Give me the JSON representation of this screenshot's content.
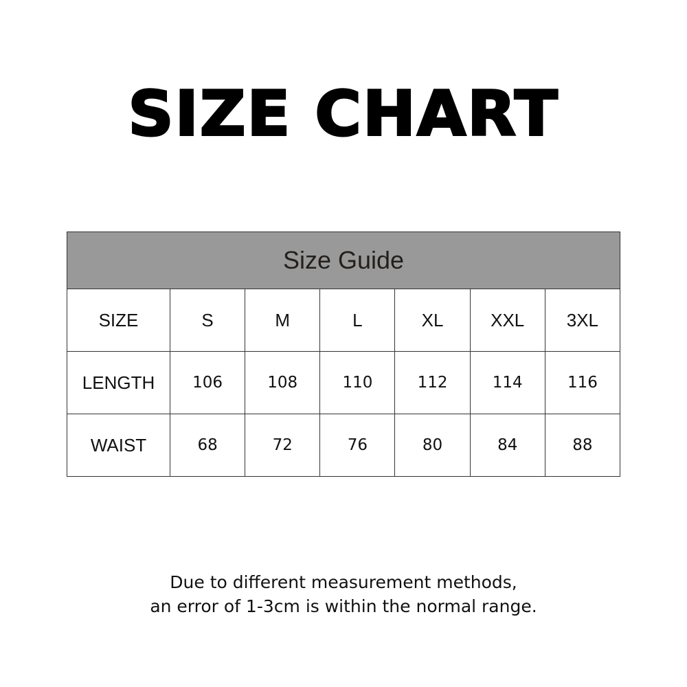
{
  "title": "SIZE CHART",
  "table": {
    "caption": "Size Guide",
    "rows": [
      {
        "label": "SIZE",
        "values": [
          "S",
          "M",
          "L",
          "XL",
          "XXL",
          "3XL"
        ]
      },
      {
        "label": "LENGTH",
        "values": [
          "106",
          "108",
          "110",
          "112",
          "114",
          "116"
        ]
      },
      {
        "label": "WAIST",
        "values": [
          "68",
          "72",
          "76",
          "80",
          "84",
          "88"
        ]
      }
    ]
  },
  "note": {
    "line1": "Due to different measurement methods,",
    "line2": "an error of 1-3cm is within the normal range."
  },
  "colors": {
    "header_bg": "#999999",
    "border": "#333333"
  }
}
